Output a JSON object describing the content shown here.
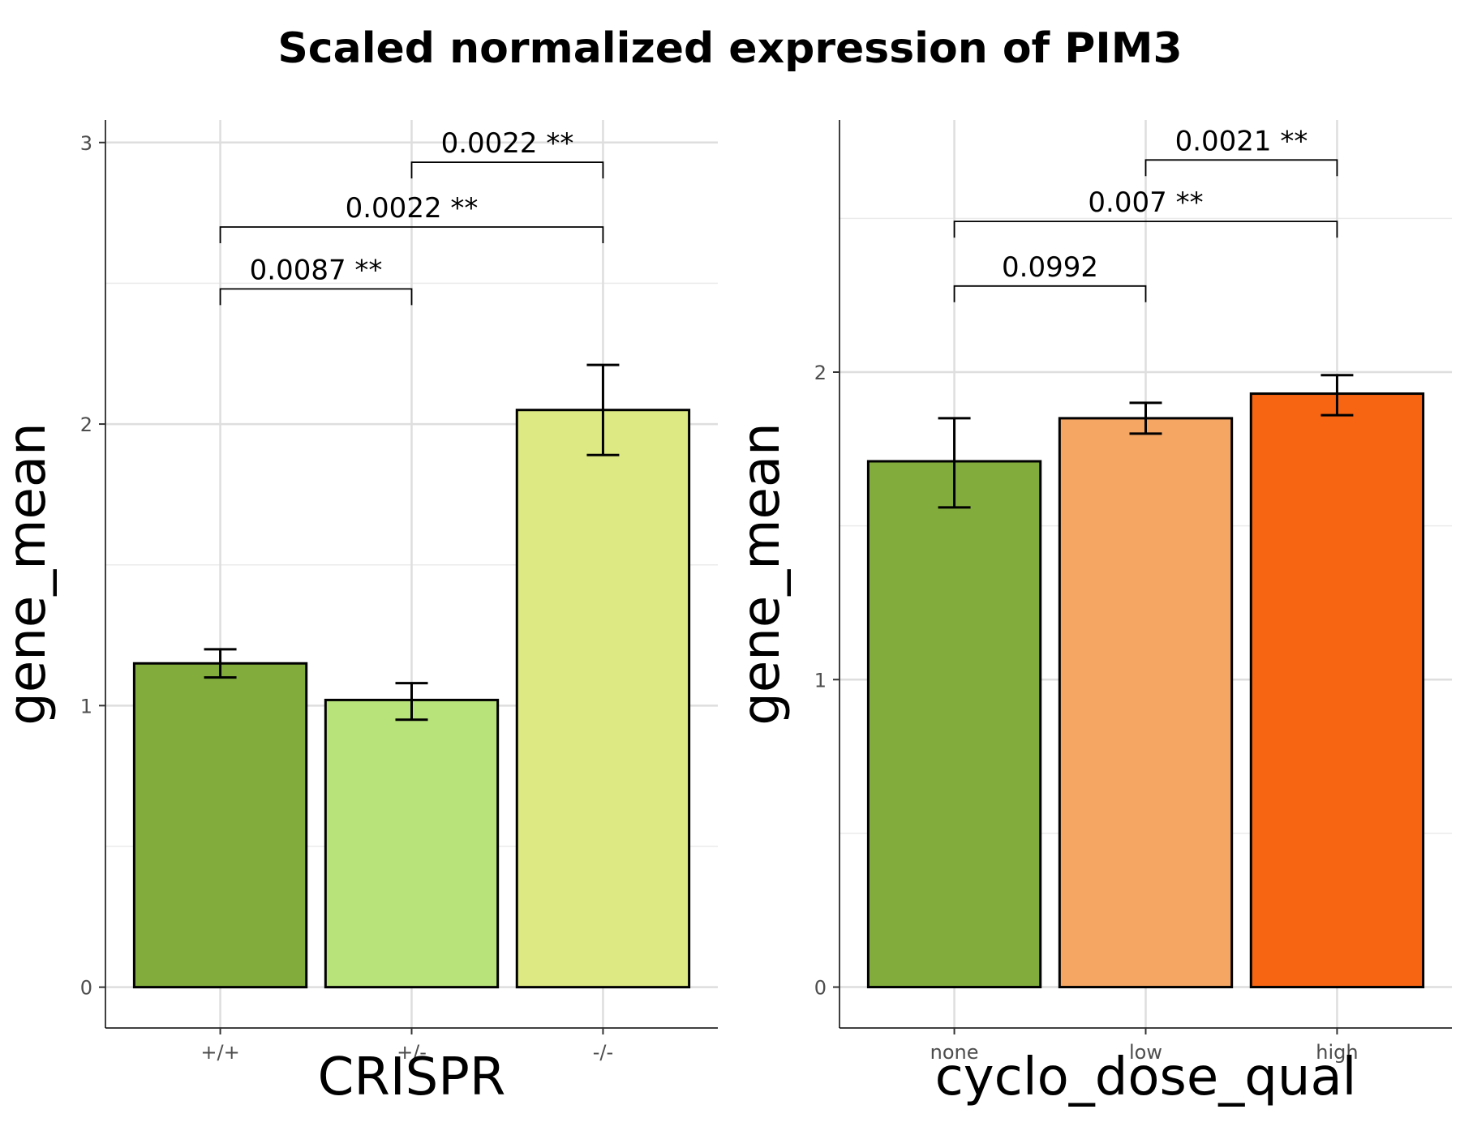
{
  "title": "Scaled normalized expression of PIM3",
  "chart_data": [
    {
      "type": "bar",
      "categories": [
        "+/+",
        "+/-",
        "-/-"
      ],
      "values": [
        1.15,
        1.02,
        2.05
      ],
      "error_low": [
        1.1,
        0.95,
        1.89
      ],
      "error_high": [
        1.2,
        1.08,
        2.21
      ],
      "colors": [
        "#82ad3c",
        "#b8e27a",
        "#dde982"
      ],
      "xlabel": "CRISPR",
      "ylabel": "gene_mean",
      "ylim": [
        -0.145,
        3.08
      ],
      "yticks": [
        0,
        1,
        2,
        3
      ],
      "ytick_labels": [
        "0",
        "1",
        "2",
        "3"
      ],
      "grid": true,
      "comparisons": [
        {
          "from": 0,
          "to": 1,
          "y": 2.48,
          "label": "0.0087 **"
        },
        {
          "from": 0,
          "to": 2,
          "y": 2.7,
          "label": "0.0022 **"
        },
        {
          "from": 1,
          "to": 2,
          "y": 2.93,
          "label": "0.0022 **"
        }
      ]
    },
    {
      "type": "bar",
      "categories": [
        "none",
        "low",
        "high"
      ],
      "values": [
        1.71,
        1.85,
        1.93
      ],
      "error_low": [
        1.56,
        1.8,
        1.86
      ],
      "error_high": [
        1.85,
        1.9,
        1.99
      ],
      "colors": [
        "#82ad3c",
        "#f5a663",
        "#f76513"
      ],
      "xlabel": "cyclo_dose_qual",
      "ylabel": "gene_mean",
      "ylim": [
        -0.133,
        2.82
      ],
      "yticks": [
        0,
        1,
        2
      ],
      "ytick_labels": [
        "0",
        "1",
        "2"
      ],
      "grid": true,
      "comparisons": [
        {
          "from": 0,
          "to": 1,
          "y": 2.28,
          "label": "0.0992"
        },
        {
          "from": 0,
          "to": 2,
          "y": 2.49,
          "label": "0.007 **"
        },
        {
          "from": 1,
          "to": 2,
          "y": 2.69,
          "label": "0.0021 **"
        }
      ]
    }
  ]
}
